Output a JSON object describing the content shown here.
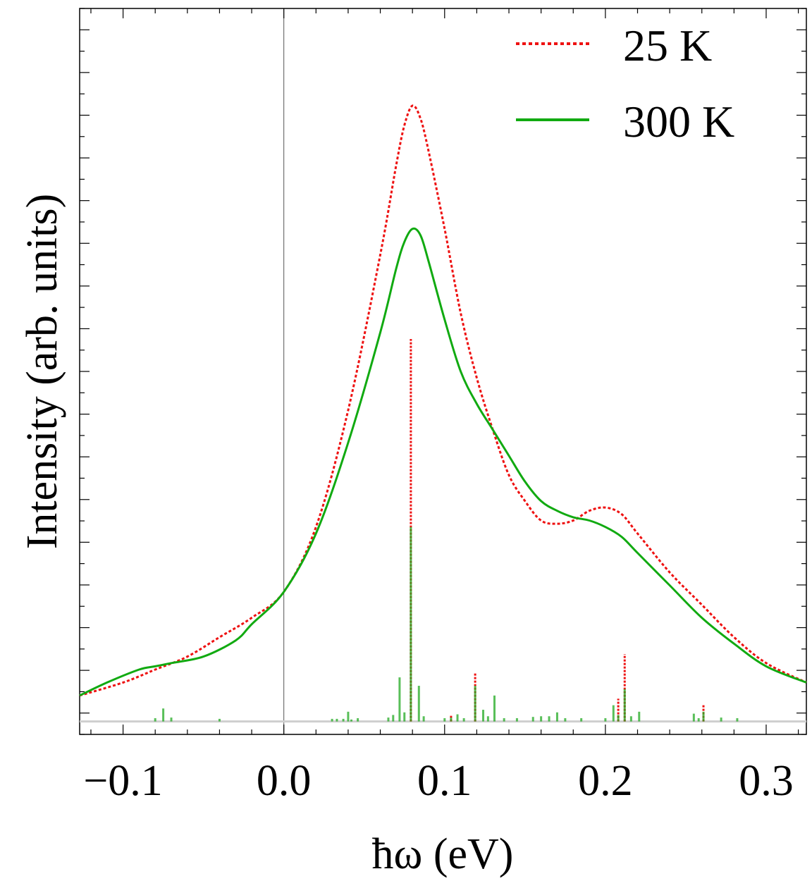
{
  "chart_data": {
    "type": "line",
    "title": "",
    "xlabel": "ħω (eV)",
    "ylabel": "Intensity (arb. units)",
    "xlim": [
      -0.127,
      0.325
    ],
    "ylim": [
      -0.02,
      1.1
    ],
    "x_ticks": [
      -0.1,
      0.0,
      0.1,
      0.2,
      0.3
    ],
    "x_tick_labels": [
      "−0.1",
      "0.0",
      "0.1",
      "0.2",
      "0.3"
    ],
    "y_tick_labels_shown": false,
    "grid": false,
    "legend_position": "top-right",
    "series": [
      {
        "name": "25 K",
        "style": "dotted",
        "color": "#ee1111",
        "x": [
          -0.127,
          -0.1,
          -0.08,
          -0.06,
          -0.04,
          -0.02,
          0.0,
          0.02,
          0.04,
          0.06,
          0.07,
          0.075,
          0.08,
          0.085,
          0.09,
          0.1,
          0.11,
          0.12,
          0.13,
          0.14,
          0.15,
          0.16,
          0.17,
          0.18,
          0.19,
          0.2,
          0.21,
          0.22,
          0.24,
          0.26,
          0.28,
          0.3,
          0.325
        ],
        "y": [
          0.04,
          0.06,
          0.08,
          0.1,
          0.13,
          0.16,
          0.2,
          0.3,
          0.48,
          0.72,
          0.86,
          0.92,
          0.95,
          0.93,
          0.88,
          0.76,
          0.63,
          0.53,
          0.45,
          0.38,
          0.34,
          0.31,
          0.305,
          0.31,
          0.325,
          0.33,
          0.32,
          0.29,
          0.23,
          0.18,
          0.13,
          0.09,
          0.06
        ]
      },
      {
        "name": "300 K",
        "style": "solid",
        "color": "#11aa11",
        "x": [
          -0.127,
          -0.11,
          -0.09,
          -0.08,
          -0.07,
          -0.05,
          -0.03,
          -0.02,
          0.0,
          0.02,
          0.04,
          0.06,
          0.07,
          0.075,
          0.08,
          0.085,
          0.09,
          0.1,
          0.11,
          0.12,
          0.13,
          0.14,
          0.15,
          0.16,
          0.17,
          0.18,
          0.19,
          0.2,
          0.21,
          0.22,
          0.24,
          0.26,
          0.28,
          0.3,
          0.325
        ],
        "y": [
          0.04,
          0.06,
          0.08,
          0.085,
          0.09,
          0.1,
          0.125,
          0.15,
          0.2,
          0.29,
          0.43,
          0.6,
          0.7,
          0.74,
          0.76,
          0.75,
          0.71,
          0.62,
          0.54,
          0.49,
          0.45,
          0.41,
          0.37,
          0.34,
          0.325,
          0.315,
          0.31,
          0.3,
          0.285,
          0.26,
          0.21,
          0.16,
          0.12,
          0.085,
          0.06
        ]
      }
    ],
    "stick_series": [
      {
        "name": "25 K",
        "color": "#ee1111",
        "x": [
          0.079,
          0.119,
          0.208,
          0.212,
          0.261,
          0.104
        ],
        "y": [
          0.59,
          0.075,
          0.035,
          0.104,
          0.025,
          0.01
        ]
      },
      {
        "name": "300 K",
        "color": "#22aa22",
        "x": [
          -0.08,
          -0.075,
          -0.07,
          -0.04,
          0.03,
          0.033,
          0.037,
          0.04,
          0.042,
          0.046,
          0.065,
          0.068,
          0.072,
          0.075,
          0.079,
          0.084,
          0.087,
          0.1,
          0.104,
          0.108,
          0.112,
          0.119,
          0.124,
          0.127,
          0.131,
          0.137,
          0.145,
          0.155,
          0.16,
          0.165,
          0.17,
          0.175,
          0.185,
          0.2,
          0.205,
          0.208,
          0.212,
          0.216,
          0.221,
          0.255,
          0.258,
          0.261,
          0.272,
          0.282
        ],
        "y": [
          0.005,
          0.02,
          0.006,
          0.004,
          0.004,
          0.004,
          0.004,
          0.015,
          0.003,
          0.005,
          0.006,
          0.01,
          0.068,
          0.014,
          0.3,
          0.055,
          0.008,
          0.005,
          0.006,
          0.011,
          0.005,
          0.055,
          0.018,
          0.008,
          0.04,
          0.005,
          0.005,
          0.007,
          0.008,
          0.008,
          0.014,
          0.005,
          0.005,
          0.005,
          0.025,
          0.01,
          0.05,
          0.008,
          0.015,
          0.012,
          0.005,
          0.015,
          0.006,
          0.005
        ]
      }
    ]
  }
}
